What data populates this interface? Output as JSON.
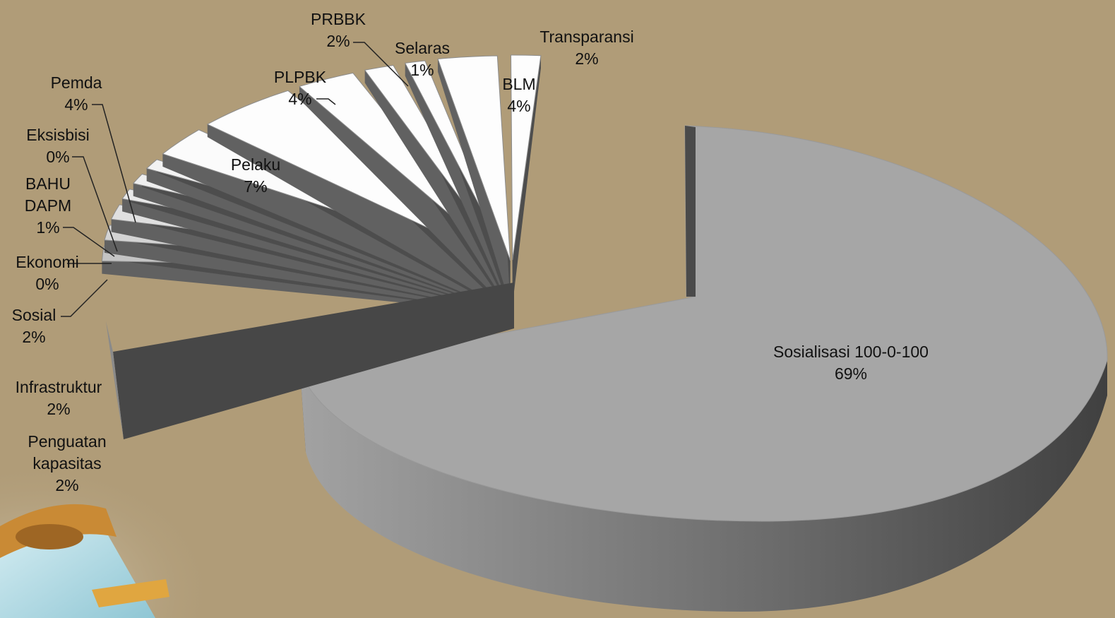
{
  "chart_data": {
    "type": "pie",
    "style": "3d-exploded",
    "title": "",
    "legend": "none",
    "slices": [
      {
        "label": "Sosialisasi 100-0-100",
        "value": 69,
        "pct": "69%",
        "color": "#a6a6a6"
      },
      {
        "label": "Penguatan kapasitas",
        "value": 2,
        "pct": "2%",
        "color": "#c4c4c4"
      },
      {
        "label": "Infrastruktur",
        "value": 2,
        "pct": "2%",
        "color": "#d4d4d4"
      },
      {
        "label": "Sosial",
        "value": 2,
        "pct": "2%",
        "color": "#e0e0e0"
      },
      {
        "label": "Ekonomi",
        "value": 0,
        "pct": "0%",
        "color": "#e8e8e8"
      },
      {
        "label": "BAHU DAPM",
        "value": 1,
        "pct": "1%",
        "color": "#eeeeee"
      },
      {
        "label": "Eksisbisi",
        "value": 0,
        "pct": "0%",
        "color": "#f2f2f2"
      },
      {
        "label": "Pemda",
        "value": 4,
        "pct": "4%",
        "color": "#fbfbfb"
      },
      {
        "label": "Pelaku",
        "value": 7,
        "pct": "7%",
        "color": "#fdfdfd"
      },
      {
        "label": "PLPBK",
        "value": 4,
        "pct": "4%",
        "color": "#fdfdfd"
      },
      {
        "label": "PRBBK",
        "value": 2,
        "pct": "2%",
        "color": "#fdfdfd"
      },
      {
        "label": "Selaras",
        "value": 1,
        "pct": "1%",
        "color": "#fdfdfd"
      },
      {
        "label": "BLM",
        "value": 4,
        "pct": "4%",
        "color": "#fdfdfd"
      },
      {
        "label": "Transparansi",
        "value": 2,
        "pct": "2%",
        "color": "#fdfdfd"
      }
    ]
  }
}
